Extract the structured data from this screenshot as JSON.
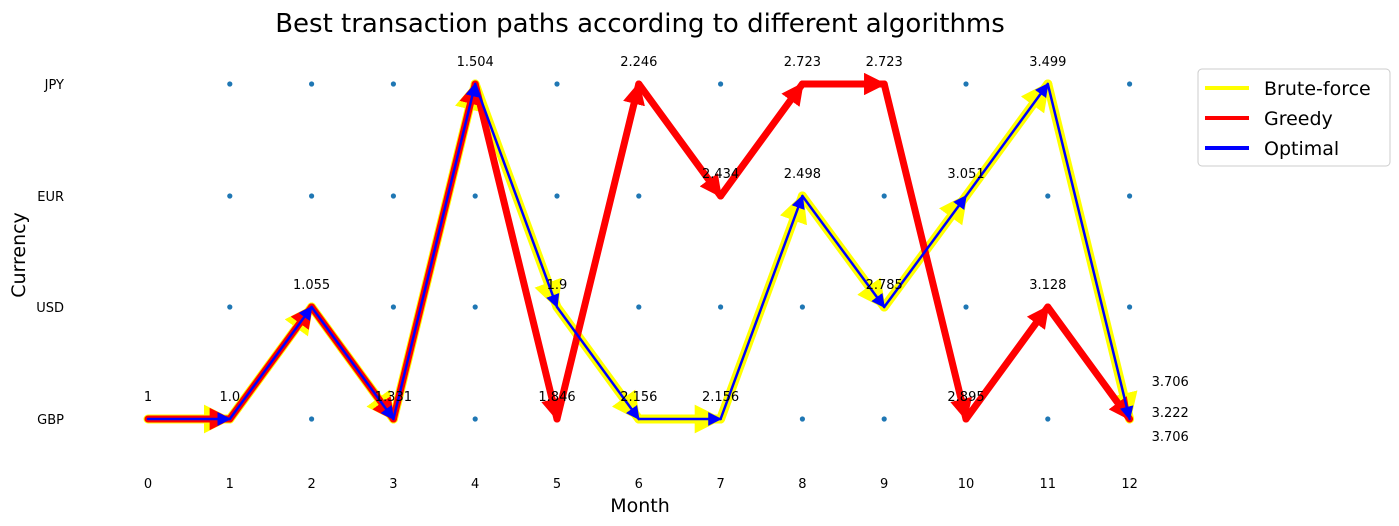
{
  "chart_data": {
    "type": "line",
    "title": "Best transaction paths according to different algorithms",
    "xlabel": "Month",
    "ylabel": "Currency",
    "x": [
      0,
      1,
      2,
      3,
      4,
      5,
      6,
      7,
      8,
      9,
      10,
      11,
      12
    ],
    "x_tick_labels": [
      "0",
      "1",
      "2",
      "3",
      "4",
      "5",
      "6",
      "7",
      "8",
      "9",
      "10",
      "11",
      "12"
    ],
    "categories": [
      "GBP",
      "USD",
      "EUR",
      "JPY"
    ],
    "grid": false,
    "legend_position": "outside-top-right",
    "series": [
      {
        "name": "Brute-force",
        "color": "#ffff00",
        "path": [
          "GBP",
          "GBP",
          "USD",
          "GBP",
          "JPY",
          "USD",
          "GBP",
          "GBP",
          "EUR",
          "USD",
          "EUR",
          "JPY",
          "GBP"
        ],
        "values": [
          "1",
          "1.0",
          "1.055",
          "1.331",
          "1.504",
          "1.9",
          "2.156",
          "2.156",
          "2.498",
          "2.785",
          "3.051",
          "3.499",
          "3.706"
        ]
      },
      {
        "name": "Greedy",
        "color": "#ff0000",
        "path": [
          "GBP",
          "GBP",
          "USD",
          "GBP",
          "JPY",
          "GBP",
          "JPY",
          "EUR",
          "JPY",
          "JPY",
          "GBP",
          "USD",
          "GBP"
        ],
        "values": [
          "1",
          "1.0",
          "1.055",
          "1.331",
          "1.504",
          "1.846",
          "2.246",
          "2.434",
          "2.723",
          "2.723",
          "2.895",
          "3.128",
          "3.222"
        ]
      },
      {
        "name": "Optimal",
        "color": "#0000ff",
        "path": [
          "GBP",
          "GBP",
          "USD",
          "GBP",
          "JPY",
          "USD",
          "GBP",
          "GBP",
          "EUR",
          "USD",
          "EUR",
          "JPY",
          "GBP"
        ],
        "values": [
          "1",
          "1.0",
          "1.055",
          "1.331",
          "1.504",
          "1.9",
          "2.156",
          "2.156",
          "2.498",
          "2.785",
          "3.051",
          "3.499",
          "3.706"
        ]
      }
    ],
    "node_color": "#1f77b4"
  }
}
